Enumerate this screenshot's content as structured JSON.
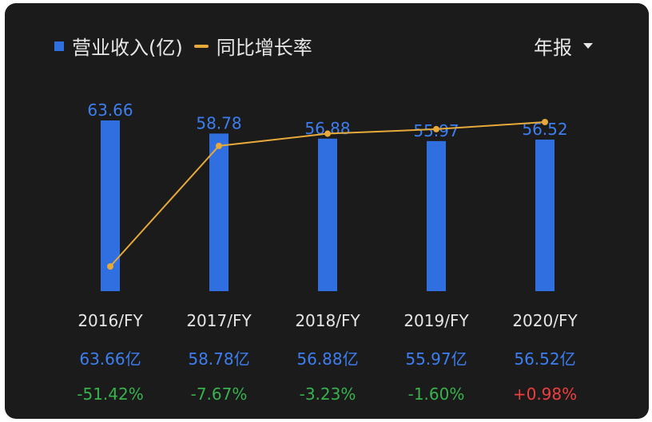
{
  "legend": {
    "bar_label": "营业收入(亿)",
    "line_label": "同比增长率"
  },
  "period_selector": {
    "label": "年报"
  },
  "chart_data": {
    "type": "bar",
    "categories": [
      "2016/FY",
      "2017/FY",
      "2018/FY",
      "2019/FY",
      "2020/FY"
    ],
    "series": [
      {
        "name": "营业收入(亿)",
        "type": "bar",
        "values": [
          63.66,
          58.78,
          56.88,
          55.97,
          56.52
        ],
        "color": "#2f6fe0"
      },
      {
        "name": "同比增长率",
        "type": "line",
        "values": [
          -51.42,
          -7.67,
          -3.23,
          -1.6,
          0.98
        ],
        "color": "#e6a93a"
      }
    ],
    "bar_labels": [
      "63.66",
      "58.78",
      "56.88",
      "55.97",
      "56.52"
    ],
    "revenue_labels": [
      "63.66亿",
      "58.78亿",
      "56.88亿",
      "55.97亿",
      "56.52亿"
    ],
    "growth_labels": [
      "-51.42%",
      "-7.67%",
      "-3.23%",
      "-1.60%",
      "+0.98%"
    ],
    "bar_ylim": [
      0,
      63.66
    ],
    "growth_ylim": [
      -51.42,
      0.98
    ],
    "grid": false
  },
  "colors": {
    "bar": "#2f6fe0",
    "line": "#e6a93a",
    "negative": "#37b24d",
    "positive": "#f03e3e"
  }
}
